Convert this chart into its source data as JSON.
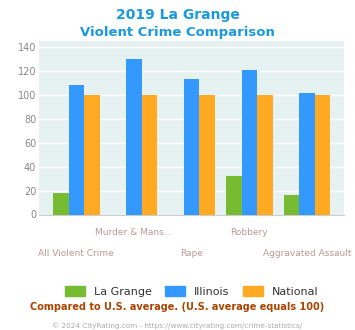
{
  "title_line1": "2019 La Grange",
  "title_line2": "Violent Crime Comparison",
  "categories": [
    "All Violent Crime",
    "Murder & Mans...",
    "Rape",
    "Robbery",
    "Aggravated Assault"
  ],
  "lagrange": [
    18,
    0,
    0,
    32,
    16
  ],
  "illinois": [
    108,
    130,
    113,
    121,
    102
  ],
  "national": [
    100,
    100,
    100,
    100,
    100
  ],
  "lagrange_color": "#77bb33",
  "illinois_color": "#3399ff",
  "national_color": "#ffaa22",
  "ylim": [
    0,
    145
  ],
  "yticks": [
    0,
    20,
    40,
    60,
    80,
    100,
    120,
    140
  ],
  "bg_color": "#e6f2f2",
  "title_color": "#1a99dd",
  "footer_text": "© 2024 CityRating.com - https://www.cityrating.com/crime-statistics/",
  "note_text": "Compared to U.S. average. (U.S. average equals 100)",
  "note_color": "#aa4400",
  "footer_color": "#aaaaaa",
  "label_color": "#bb9999"
}
